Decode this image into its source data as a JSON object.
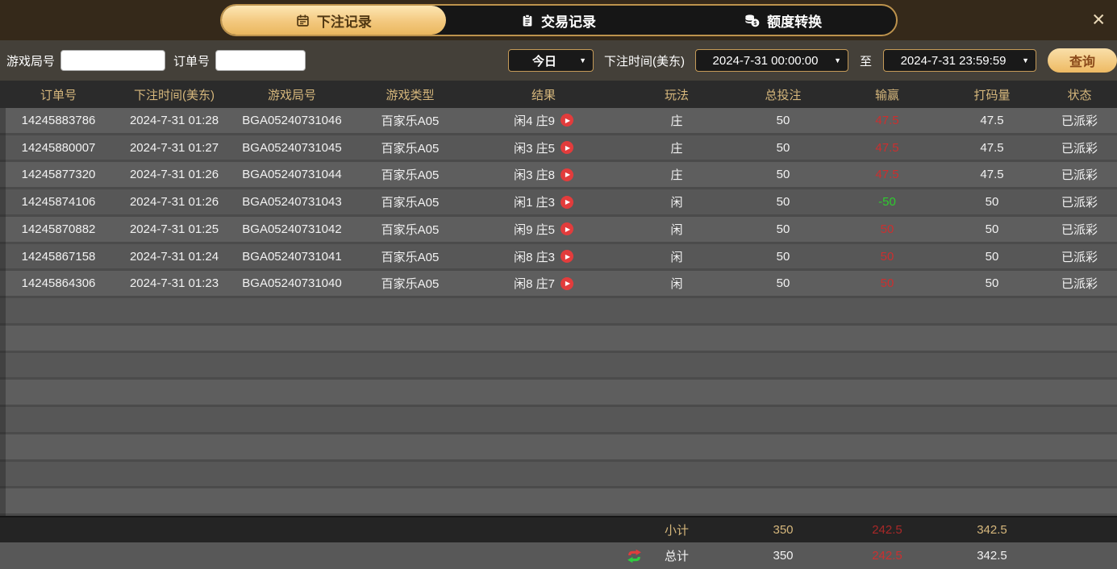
{
  "header": {
    "tabs": [
      {
        "label": "下注记录",
        "active": true
      },
      {
        "label": "交易记录",
        "active": false
      },
      {
        "label": "额度转换",
        "active": false
      }
    ],
    "close_glyph": "✕"
  },
  "icons": {
    "play_glyph": "▶",
    "dropdown_arrow": "▼",
    "tab_icons": [
      "calendar-icon",
      "clipboard-icon",
      "coins-icon"
    ]
  },
  "filters": {
    "game_round_label": "游戏局号",
    "game_round_value": "",
    "order_label": "订单号",
    "order_value": "",
    "date_preset": "今日",
    "bet_time_label": "下注时间(美东)",
    "start_time": "2024-7-31 00:00:00",
    "to_label": "至",
    "end_time": "2024-7-31 23:59:59",
    "search_label": "查询"
  },
  "table": {
    "columns": [
      "订单号",
      "下注时间(美东)",
      "游戏局号",
      "游戏类型",
      "结果",
      "玩法",
      "总投注",
      "输赢",
      "打码量",
      "状态"
    ],
    "rows": [
      {
        "order_id": "14245883786",
        "bet_time": "2024-7-31 01:28",
        "round_id": "BGA05240731046",
        "game_type": "百家乐A05",
        "result": "闲4 庄9",
        "play": "庄",
        "total_bet": "50",
        "win_loss": "47.5",
        "win_loss_color": "red",
        "turnover": "47.5",
        "status": "已派彩"
      },
      {
        "order_id": "14245880007",
        "bet_time": "2024-7-31 01:27",
        "round_id": "BGA05240731045",
        "game_type": "百家乐A05",
        "result": "闲3 庄5",
        "play": "庄",
        "total_bet": "50",
        "win_loss": "47.5",
        "win_loss_color": "red",
        "turnover": "47.5",
        "status": "已派彩"
      },
      {
        "order_id": "14245877320",
        "bet_time": "2024-7-31 01:26",
        "round_id": "BGA05240731044",
        "game_type": "百家乐A05",
        "result": "闲3 庄8",
        "play": "庄",
        "total_bet": "50",
        "win_loss": "47.5",
        "win_loss_color": "red",
        "turnover": "47.5",
        "status": "已派彩"
      },
      {
        "order_id": "14245874106",
        "bet_time": "2024-7-31 01:26",
        "round_id": "BGA05240731043",
        "game_type": "百家乐A05",
        "result": "闲1 庄3",
        "play": "闲",
        "total_bet": "50",
        "win_loss": "-50",
        "win_loss_color": "green",
        "turnover": "50",
        "status": "已派彩"
      },
      {
        "order_id": "14245870882",
        "bet_time": "2024-7-31 01:25",
        "round_id": "BGA05240731042",
        "game_type": "百家乐A05",
        "result": "闲9 庄5",
        "play": "闲",
        "total_bet": "50",
        "win_loss": "50",
        "win_loss_color": "red",
        "turnover": "50",
        "status": "已派彩"
      },
      {
        "order_id": "14245867158",
        "bet_time": "2024-7-31 01:24",
        "round_id": "BGA05240731041",
        "game_type": "百家乐A05",
        "result": "闲8 庄3",
        "play": "闲",
        "total_bet": "50",
        "win_loss": "50",
        "win_loss_color": "red",
        "turnover": "50",
        "status": "已派彩"
      },
      {
        "order_id": "14245864306",
        "bet_time": "2024-7-31 01:23",
        "round_id": "BGA05240731040",
        "game_type": "百家乐A05",
        "result": "闲8 庄7",
        "play": "闲",
        "total_bet": "50",
        "win_loss": "50",
        "win_loss_color": "red",
        "turnover": "50",
        "status": "已派彩"
      }
    ],
    "empty_row_count": 8,
    "subtotal": {
      "label": "小计",
      "total_bet": "350",
      "win_loss": "242.5",
      "turnover": "342.5"
    },
    "total": {
      "label": "总计",
      "total_bet": "350",
      "win_loss": "242.5",
      "turnover": "342.5"
    }
  },
  "colors": {
    "accent_gold": "#e3b86a",
    "header_text_gold": "#d6b77c",
    "win_red": "#cb2f2f",
    "loss_green": "#2ecc2e",
    "tab_active_text": "#513813",
    "row_gray": "#5e5e5e"
  }
}
